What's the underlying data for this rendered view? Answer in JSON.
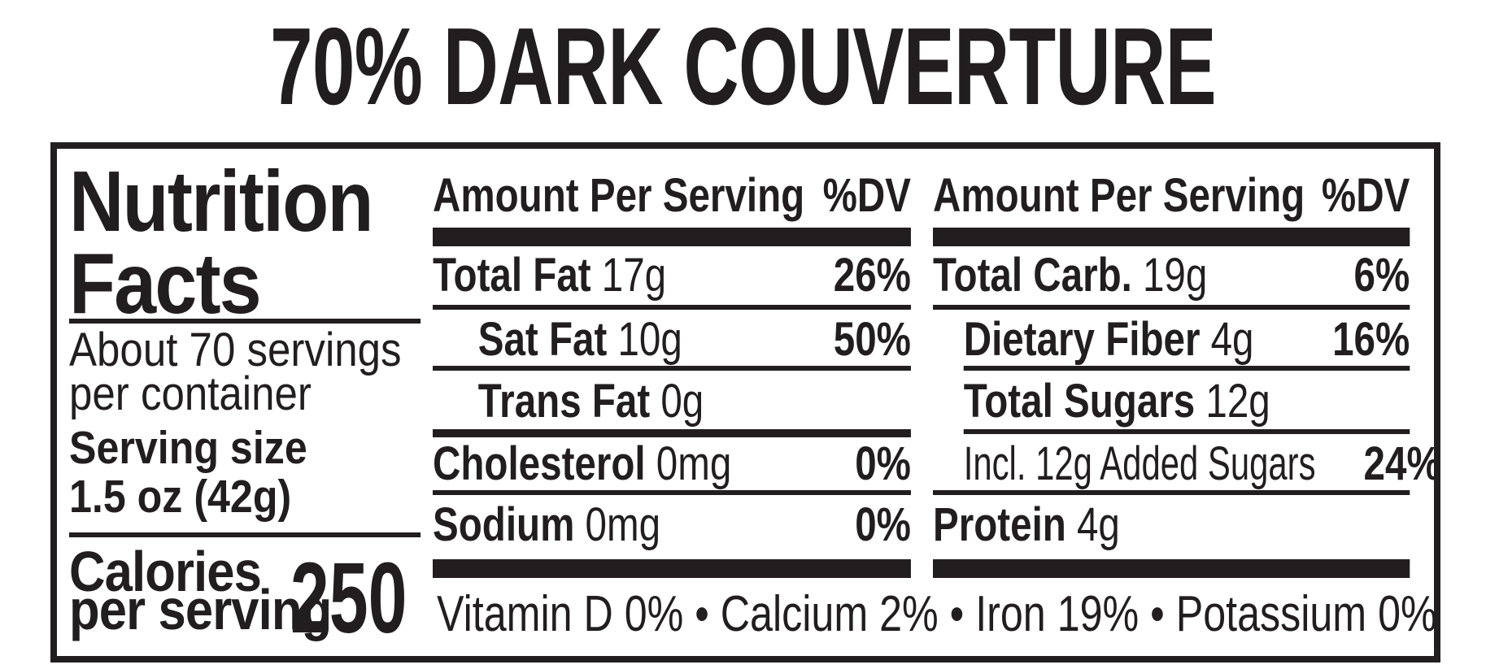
{
  "product_title": "70% DARK COUVERTURE",
  "colors": {
    "ink": "#221e1f",
    "background": "#ffffff"
  },
  "panel": {
    "heading_line1": "Nutrition",
    "heading_line2": "Facts",
    "servings_line1": "About 70 servings",
    "servings_line2": "per container",
    "serving_size_label": "Serving size",
    "serving_size_value": "1.5 oz (42g)",
    "calories_label_line1": "Calories",
    "calories_label_line2": "per serving",
    "calories_value": "250",
    "columns": [
      {
        "header_amount": "Amount Per Serving",
        "header_dv": "%DV",
        "rows": [
          {
            "name": "Total Fat",
            "amount": "17g",
            "dv": "26%"
          },
          {
            "name": "Sat Fat",
            "amount": "10g",
            "dv": "50%"
          },
          {
            "name": "Trans Fat",
            "amount": "0g",
            "dv": ""
          },
          {
            "name": "Cholesterol",
            "amount": "0mg",
            "dv": "0%"
          },
          {
            "name": "Sodium",
            "amount": "0mg",
            "dv": "0%"
          }
        ]
      },
      {
        "header_amount": "Amount Per Serving",
        "header_dv": "%DV",
        "rows": [
          {
            "name": "Total Carb.",
            "amount": "19g",
            "dv": "6%"
          },
          {
            "name": "Dietary Fiber",
            "amount": "4g",
            "dv": "16%"
          },
          {
            "name": "Total Sugars",
            "amount": "12g",
            "dv": ""
          },
          {
            "name": "Incl. 12g Added Sugars",
            "amount": "",
            "dv": "24%"
          },
          {
            "name": "Protein",
            "amount": "4g",
            "dv": ""
          }
        ]
      }
    ],
    "vitamins_line": "Vitamin D 0% • Calcium 2% • Iron 19% • Potassium 0%"
  }
}
